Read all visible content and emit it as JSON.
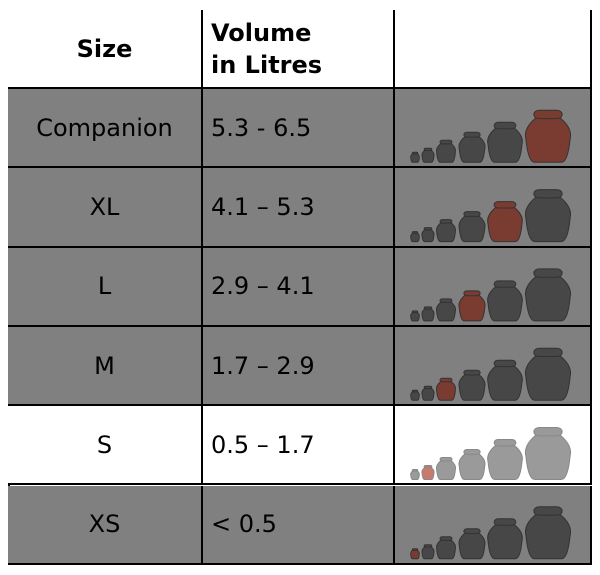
{
  "table": {
    "header": [
      "Size",
      "Volume in Litres"
    ],
    "rows": [
      [
        "Companion",
        "5.3 - 6.5"
      ],
      [
        "XL",
        "4.1 – 5.3"
      ],
      [
        "L",
        "2.9 – 4.1"
      ],
      [
        "M",
        "1.7 – 2.9"
      ],
      [
        "S",
        "0.5 – 1.7"
      ],
      [
        "XS",
        "< 0.5"
      ]
    ]
  }
}
